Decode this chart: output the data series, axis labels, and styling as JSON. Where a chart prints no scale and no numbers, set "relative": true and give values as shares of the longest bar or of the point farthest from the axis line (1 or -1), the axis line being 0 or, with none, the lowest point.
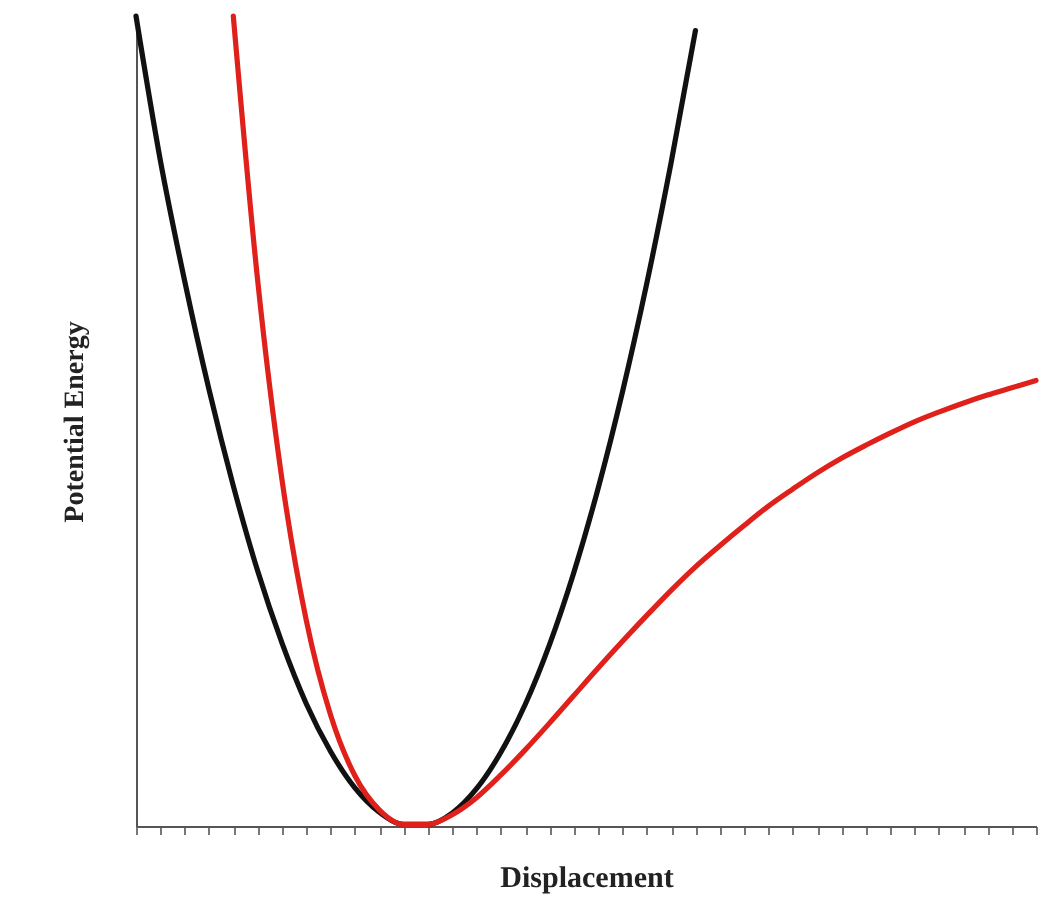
{
  "chart_data": {
    "type": "line",
    "relative": true,
    "xlabel": "Displacement",
    "ylabel": "Potential Energy",
    "categories": [
      null,
      null,
      null,
      null,
      null,
      null,
      null,
      null,
      null,
      null,
      null,
      null,
      null,
      null,
      null,
      null,
      null,
      null,
      null,
      null,
      null,
      null,
      null,
      null,
      null,
      null,
      null,
      null,
      null,
      null,
      null,
      null,
      null,
      null,
      null,
      null,
      null,
      null
    ],
    "series": [
      {
        "color": "#111111",
        "values": [
          1.0,
          0.822,
          0.673,
          0.539,
          0.42,
          0.315,
          0.226,
          0.151,
          0.092,
          0.047,
          0.017,
          0.002,
          0.002,
          0.016,
          0.046,
          0.091,
          0.15,
          0.224,
          0.313,
          0.417,
          0.536,
          0.67,
          0.819,
          0.982,
          null,
          null,
          null,
          null,
          null,
          null,
          null,
          null,
          null,
          null,
          null,
          null,
          null,
          null
        ]
      },
      {
        "color": "#e0201b",
        "values": [
          null,
          null,
          null,
          null,
          1.0,
          0.674,
          0.428,
          0.254,
          0.137,
          0.062,
          0.02,
          0.002,
          0.002,
          0.014,
          0.035,
          0.063,
          0.094,
          0.127,
          0.161,
          0.195,
          0.228,
          0.26,
          0.291,
          0.32,
          0.346,
          0.371,
          0.395,
          0.416,
          0.436,
          0.454,
          0.47,
          0.485,
          0.499,
          0.511,
          0.522,
          0.532,
          0.541,
          0.55
        ]
      }
    ],
    "marker": "none",
    "line_style": "solid"
  }
}
